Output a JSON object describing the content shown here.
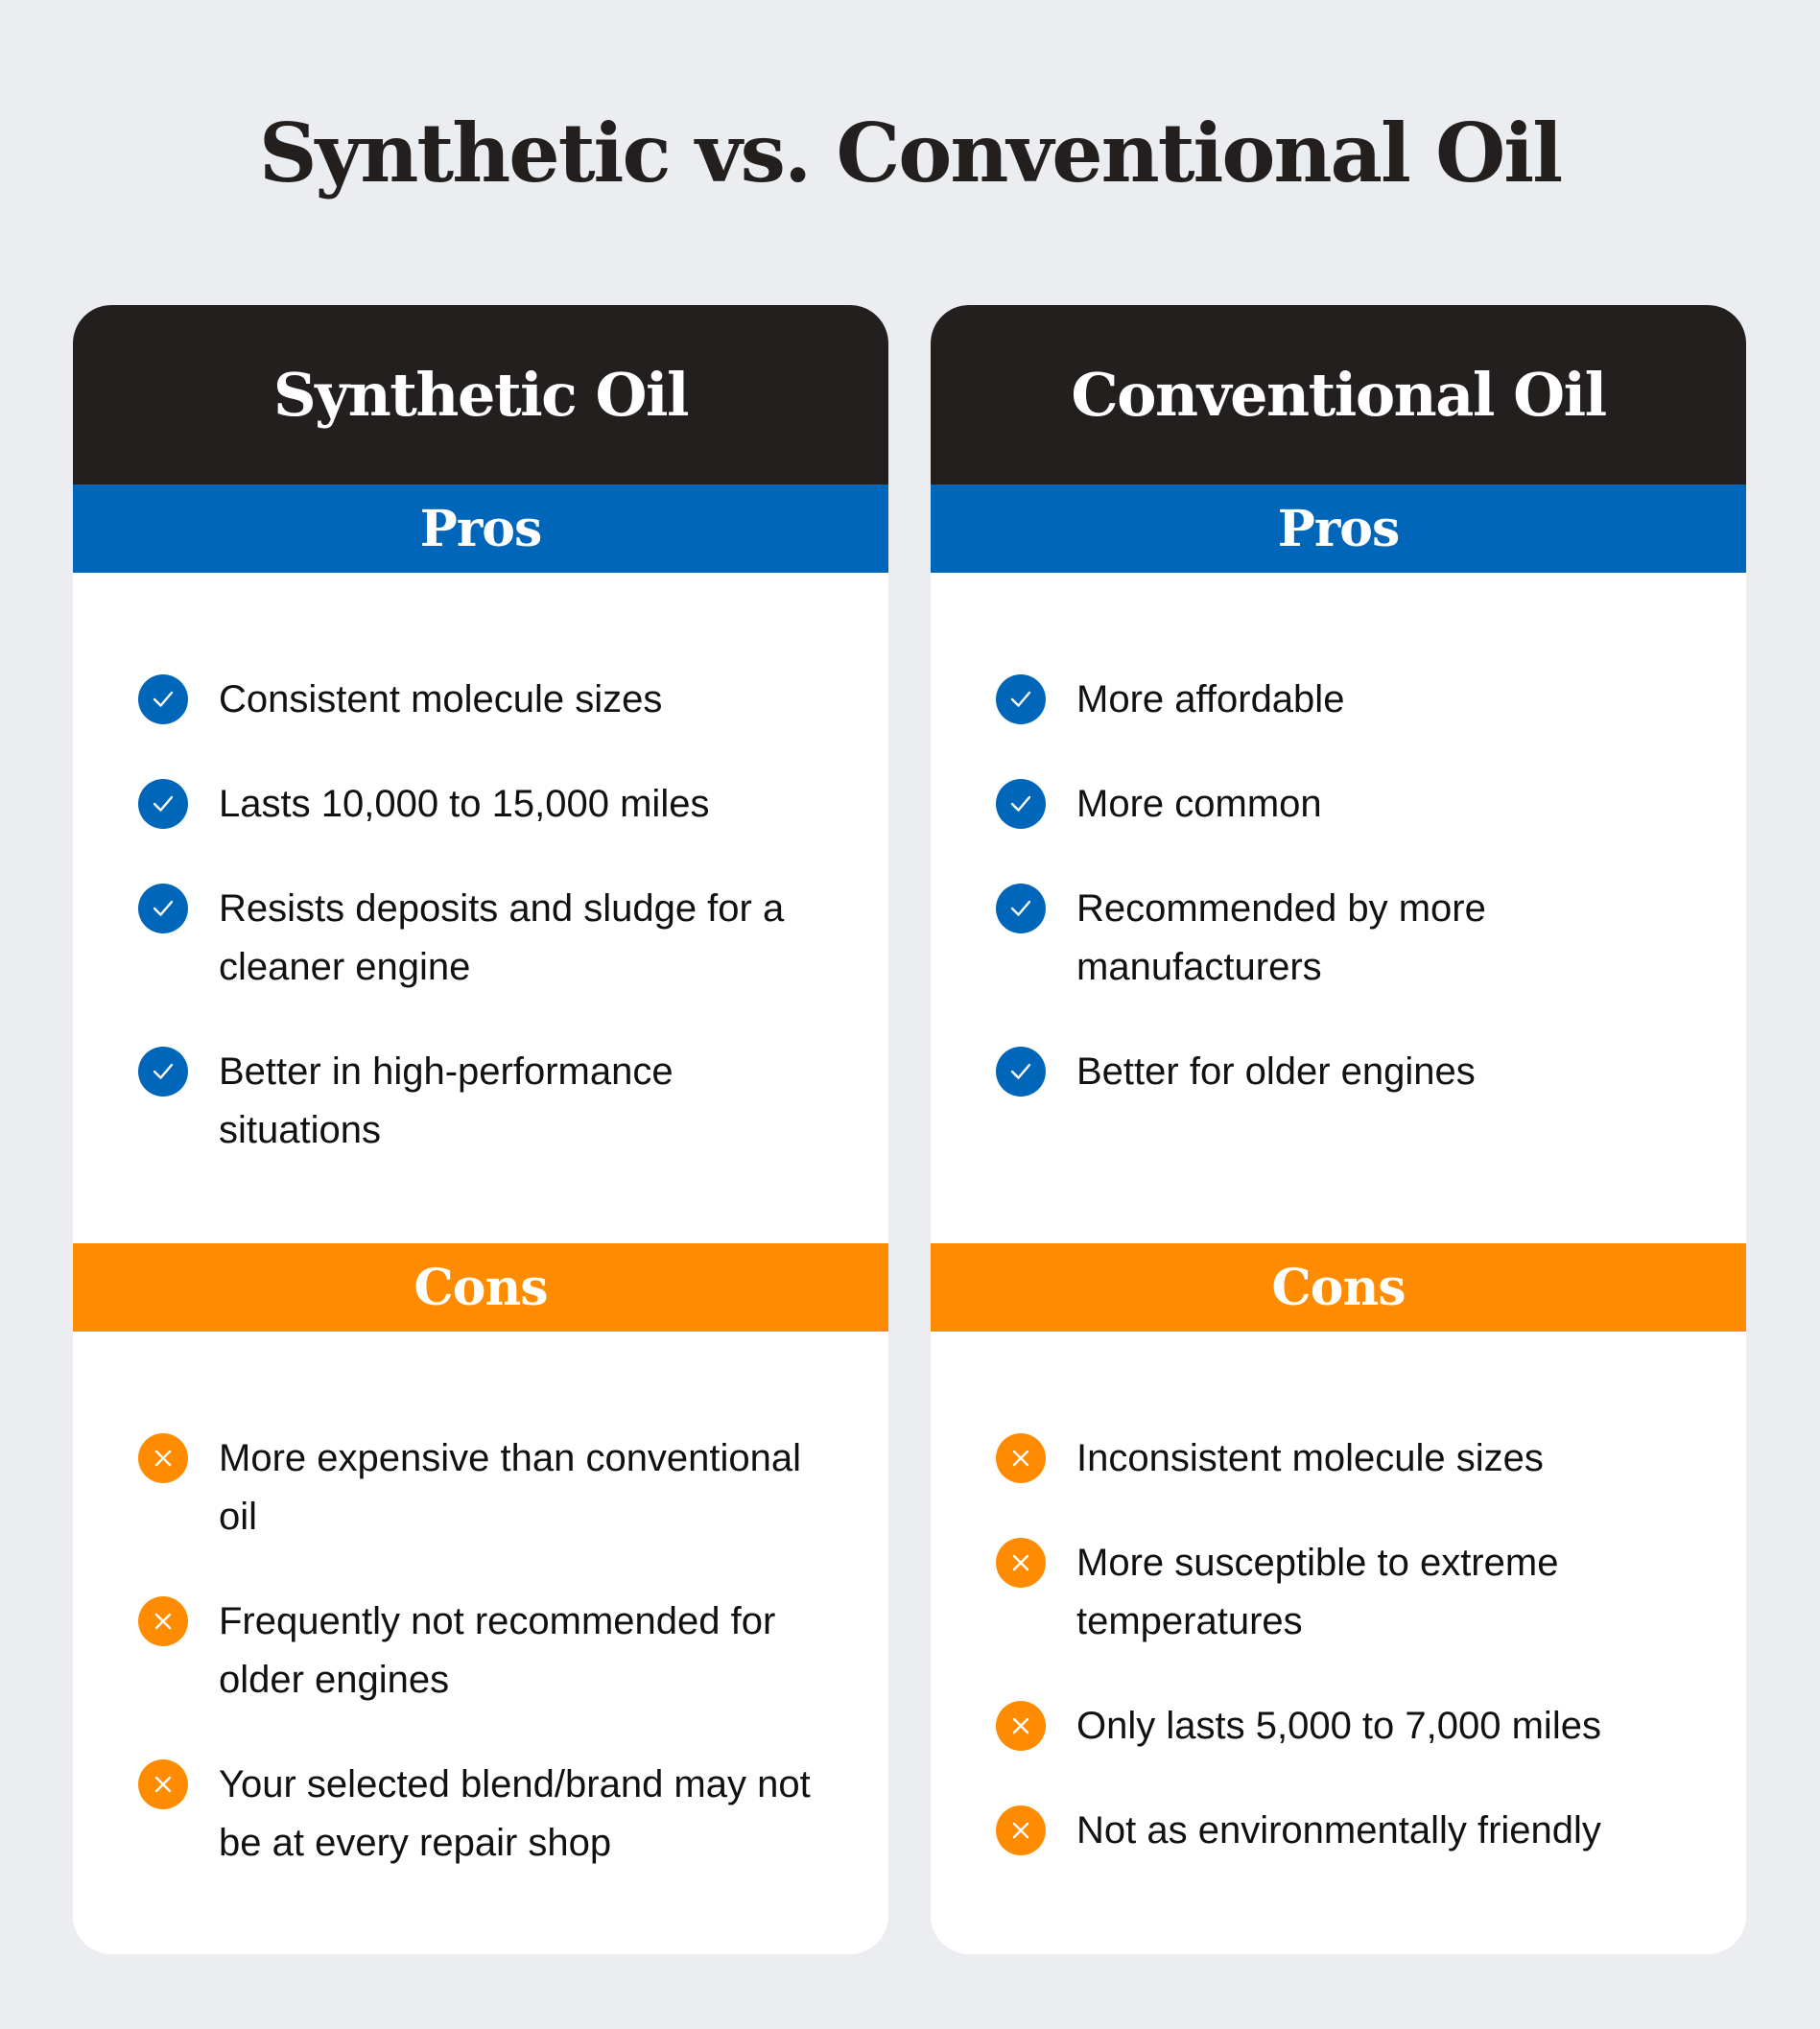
{
  "title": "Synthetic vs. Conventional Oil",
  "colors": {
    "header": "#221f1e",
    "pros": "#0066ba",
    "cons": "#ff8c00",
    "background": "#ecedf1"
  },
  "columns": [
    {
      "heading": "Synthetic Oil",
      "pros_label": "Pros",
      "cons_label": "Cons",
      "pros": [
        "Consistent molecule sizes",
        "Lasts 10,000 to 15,000 miles",
        "Resists deposits and sludge for a cleaner engine",
        "Better in high-performance situations"
      ],
      "cons": [
        "More expensive than conventional oil",
        "Frequently not recommended for older engines",
        "Your selected blend/brand may not be at every repair shop"
      ]
    },
    {
      "heading": "Conventional Oil",
      "pros_label": "Pros",
      "cons_label": "Cons",
      "pros": [
        "More affordable",
        "More common",
        "Recommended by more manufacturers",
        "Better for older engines"
      ],
      "cons": [
        "Inconsistent molecule sizes",
        "More susceptible to extreme temperatures",
        "Only lasts 5,000 to 7,000  miles",
        "Not as environmentally friendly"
      ]
    }
  ],
  "icons": {
    "pro": "check-circle-icon",
    "con": "x-circle-icon"
  }
}
